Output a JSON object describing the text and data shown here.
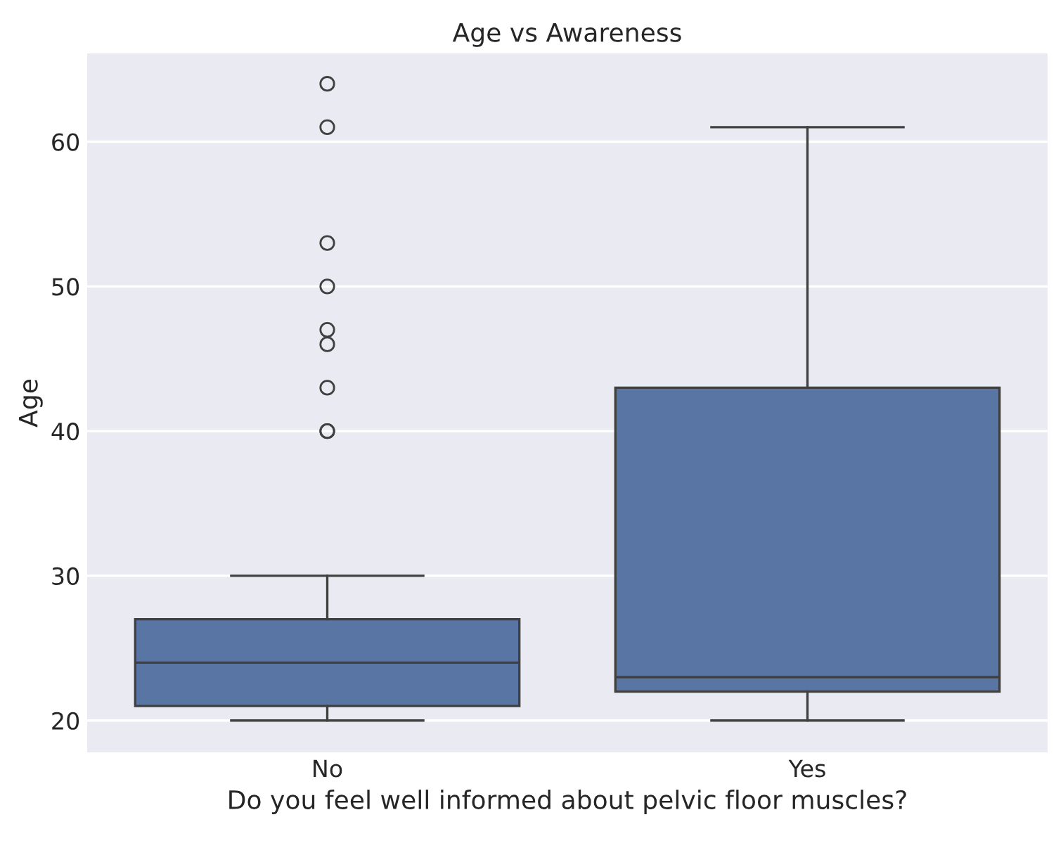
{
  "chart_data": {
    "type": "box",
    "title": "Age vs Awareness",
    "xlabel": "Do you feel well informed about pelvic floor muscles?",
    "ylabel": "Age",
    "categories": [
      "No",
      "Yes"
    ],
    "color": "#5875a4",
    "boxes": [
      {
        "low": 20,
        "q1": 21,
        "median": 24,
        "q3": 27,
        "high": 30,
        "outliers": [
          40,
          40,
          43,
          46,
          47,
          50,
          53,
          61,
          64
        ]
      },
      {
        "low": 20,
        "q1": 22,
        "median": 23,
        "q3": 43,
        "high": 61
      }
    ],
    "ylim": [
      17.8,
      66.1
    ],
    "yticks": [
      20,
      30,
      40,
      50,
      60
    ],
    "grid": "y"
  }
}
